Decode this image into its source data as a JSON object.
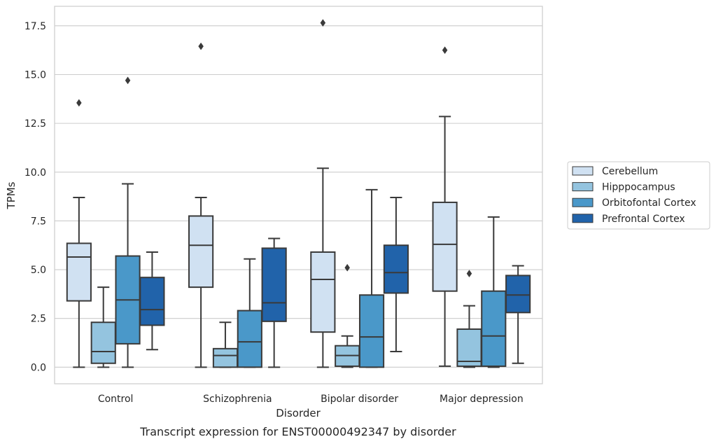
{
  "chart_data": {
    "type": "box",
    "title": "",
    "caption": "Transcript expression for ENST00000492347 by disorder",
    "xlabel": "Disorder",
    "ylabel": "TPMs",
    "ylim": [
      -0.85,
      18.5
    ],
    "yticks": [
      0.0,
      2.5,
      5.0,
      7.5,
      10.0,
      12.5,
      15.0,
      17.5
    ],
    "ytick_labels": [
      "0.0",
      "2.5",
      "5.0",
      "7.5",
      "10.0",
      "12.5",
      "15.0",
      "17.5"
    ],
    "grid": "horizontal",
    "legend_position": "right",
    "categories": [
      "Control",
      "Schizophrenia",
      "Bipolar disorder",
      "Major depression"
    ],
    "series": [
      {
        "name": "Cerebellum",
        "color": "#d0e1f2",
        "boxes": [
          {
            "whisker_low": 0.0,
            "q1": 3.4,
            "median": 5.65,
            "q3": 6.35,
            "whisker_high": 8.7,
            "outliers": [
              13.55
            ]
          },
          {
            "whisker_low": 0.0,
            "q1": 4.1,
            "median": 6.25,
            "q3": 7.75,
            "whisker_high": 8.7,
            "outliers": [
              16.45
            ]
          },
          {
            "whisker_low": 0.0,
            "q1": 1.8,
            "median": 4.5,
            "q3": 5.9,
            "whisker_high": 10.2,
            "outliers": [
              17.65
            ]
          },
          {
            "whisker_low": 0.05,
            "q1": 3.9,
            "median": 6.3,
            "q3": 8.45,
            "whisker_high": 12.85,
            "outliers": [
              16.25
            ]
          }
        ]
      },
      {
        "name": "Hipppocampus",
        "color": "#94c4df",
        "boxes": [
          {
            "whisker_low": 0.0,
            "q1": 0.2,
            "median": 0.8,
            "q3": 2.3,
            "whisker_high": 4.1,
            "outliers": []
          },
          {
            "whisker_low": 0.0,
            "q1": 0.0,
            "median": 0.6,
            "q3": 0.95,
            "whisker_high": 2.3,
            "outliers": []
          },
          {
            "whisker_low": 0.0,
            "q1": 0.05,
            "median": 0.6,
            "q3": 1.1,
            "whisker_high": 1.6,
            "outliers": [
              5.1
            ]
          },
          {
            "whisker_low": 0.0,
            "q1": 0.05,
            "median": 0.3,
            "q3": 1.95,
            "whisker_high": 3.15,
            "outliers": [
              4.8
            ]
          }
        ]
      },
      {
        "name": "Orbitofontal Cortex",
        "color": "#4a98c9",
        "boxes": [
          {
            "whisker_low": 0.0,
            "q1": 1.2,
            "median": 3.45,
            "q3": 5.7,
            "whisker_high": 9.4,
            "outliers": [
              14.7
            ]
          },
          {
            "whisker_low": 0.0,
            "q1": 0.0,
            "median": 1.3,
            "q3": 2.9,
            "whisker_high": 5.55,
            "outliers": []
          },
          {
            "whisker_low": 0.0,
            "q1": 0.0,
            "median": 1.55,
            "q3": 3.7,
            "whisker_high": 9.1,
            "outliers": []
          },
          {
            "whisker_low": 0.0,
            "q1": 0.05,
            "median": 1.6,
            "q3": 3.9,
            "whisker_high": 7.7,
            "outliers": []
          }
        ]
      },
      {
        "name": "Prefrontal Cortex",
        "color": "#2163aa",
        "boxes": [
          {
            "whisker_low": 0.9,
            "q1": 2.15,
            "median": 2.95,
            "q3": 4.6,
            "whisker_high": 5.9,
            "outliers": []
          },
          {
            "whisker_low": 0.0,
            "q1": 2.35,
            "median": 3.3,
            "q3": 6.1,
            "whisker_high": 6.6,
            "outliers": []
          },
          {
            "whisker_low": 0.8,
            "q1": 3.8,
            "median": 4.85,
            "q3": 6.25,
            "whisker_high": 8.7,
            "outliers": []
          },
          {
            "whisker_low": 0.2,
            "q1": 2.8,
            "median": 3.7,
            "q3": 4.7,
            "whisker_high": 5.2,
            "outliers": []
          }
        ]
      }
    ]
  },
  "style": {
    "grid_color": "#cccccc",
    "frame_color": "#cccccc",
    "line_color": "#3a3a3a"
  }
}
